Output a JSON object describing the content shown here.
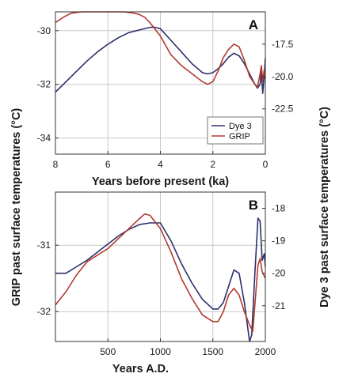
{
  "figure": {
    "left_axis_label": "GRIP past surface temperatures (°C)",
    "right_axis_label": "Dye 3 past surface temperatures (°C)"
  },
  "colors": {
    "dye3": "#2b2f6b",
    "grip": "#b23a2e",
    "grid": "#c8c8c8",
    "frame": "#333333"
  },
  "chart_data": [
    {
      "type": "line",
      "panel_label": "A",
      "xlabel": "Years before present (ka)",
      "xlim": [
        8,
        0
      ],
      "x_ticks": [
        8,
        6,
        4,
        2,
        0
      ],
      "ylim_left": [
        -34.6,
        -29.3
      ],
      "y_ticks_left": [
        -30,
        -32,
        -34
      ],
      "ylim_right": [
        -26.0,
        -15.0
      ],
      "y_ticks_right": [
        -17.5,
        -20.0,
        -22.5
      ],
      "grid": true,
      "legend": {
        "placement": "bottom-right",
        "entries": [
          "Dye 3",
          "GRIP"
        ]
      },
      "series": [
        {
          "name": "Dye 3",
          "axis": "right",
          "x": [
            8,
            7.6,
            7.2,
            6.8,
            6.4,
            6.0,
            5.6,
            5.2,
            4.8,
            4.4,
            4.2,
            4.0,
            3.6,
            3.2,
            2.8,
            2.4,
            2.2,
            2.0,
            1.8,
            1.6,
            1.4,
            1.2,
            1.0,
            0.8,
            0.6,
            0.4,
            0.3,
            0.2,
            0.15,
            0.1,
            0.05,
            0.0
          ],
          "y": [
            -21.2,
            -20.4,
            -19.6,
            -18.8,
            -18.1,
            -17.5,
            -17.0,
            -16.6,
            -16.4,
            -16.2,
            -16.2,
            -16.3,
            -17.2,
            -18.1,
            -19.0,
            -19.7,
            -19.8,
            -19.7,
            -19.4,
            -19.0,
            -18.5,
            -18.2,
            -18.4,
            -19.0,
            -19.8,
            -20.6,
            -20.9,
            -20.6,
            -19.6,
            -21.3,
            -20.2,
            -18.6
          ]
        },
        {
          "name": "GRIP",
          "axis": "left",
          "x": [
            8,
            7.7,
            7.4,
            7.0,
            6.6,
            6.2,
            5.8,
            5.4,
            5.0,
            4.8,
            4.6,
            4.4,
            4.0,
            3.6,
            3.2,
            2.8,
            2.4,
            2.2,
            2.0,
            1.8,
            1.6,
            1.4,
            1.2,
            1.0,
            0.8,
            0.6,
            0.4,
            0.3,
            0.2,
            0.15,
            0.1,
            0.05,
            0.0
          ],
          "y": [
            -29.7,
            -29.5,
            -29.35,
            -29.3,
            -29.3,
            -29.3,
            -29.3,
            -29.3,
            -29.35,
            -29.4,
            -29.5,
            -29.7,
            -30.2,
            -30.9,
            -31.3,
            -31.6,
            -31.9,
            -32.0,
            -31.9,
            -31.5,
            -31.0,
            -30.7,
            -30.5,
            -30.6,
            -31.1,
            -31.7,
            -32.0,
            -32.1,
            -31.6,
            -31.3,
            -31.9,
            -31.5,
            -31.8
          ]
        }
      ]
    },
    {
      "type": "line",
      "panel_label": "B",
      "xlabel": "Years A.D.",
      "xlim": [
        0,
        2000
      ],
      "x_ticks": [
        500,
        1000,
        1500,
        2000
      ],
      "ylim_left": [
        -32.45,
        -30.2
      ],
      "y_ticks_left": [
        -31,
        -32
      ],
      "ylim_right": [
        -22.1,
        -17.5
      ],
      "y_ticks_right": [
        -18,
        -19,
        -20,
        -21
      ],
      "grid": true,
      "series": [
        {
          "name": "Dye 3",
          "axis": "right",
          "x": [
            0,
            100,
            200,
            300,
            400,
            500,
            600,
            700,
            800,
            900,
            1000,
            1100,
            1200,
            1300,
            1400,
            1500,
            1550,
            1600,
            1700,
            1750,
            1800,
            1850,
            1870,
            1900,
            1930,
            1950,
            1970,
            1990,
            2000
          ],
          "y": [
            -20.0,
            -20.0,
            -19.8,
            -19.6,
            -19.35,
            -19.1,
            -18.85,
            -18.65,
            -18.5,
            -18.45,
            -18.45,
            -19.0,
            -19.7,
            -20.3,
            -20.8,
            -21.1,
            -21.1,
            -20.9,
            -19.9,
            -20.0,
            -20.9,
            -22.1,
            -21.9,
            -20.0,
            -18.3,
            -18.4,
            -19.6,
            -19.4,
            -19.8
          ]
        },
        {
          "name": "GRIP",
          "axis": "left",
          "x": [
            0,
            100,
            200,
            300,
            400,
            500,
            600,
            700,
            800,
            850,
            900,
            1000,
            1100,
            1200,
            1300,
            1400,
            1500,
            1550,
            1600,
            1650,
            1700,
            1750,
            1800,
            1850,
            1880,
            1900,
            1930,
            1950,
            1970,
            2000
          ],
          "y": [
            -31.9,
            -31.7,
            -31.45,
            -31.25,
            -31.15,
            -31.05,
            -30.9,
            -30.75,
            -30.6,
            -30.53,
            -30.55,
            -30.75,
            -31.1,
            -31.5,
            -31.8,
            -32.05,
            -32.15,
            -32.15,
            -32.0,
            -31.75,
            -31.65,
            -31.75,
            -32.0,
            -32.2,
            -32.3,
            -31.9,
            -31.3,
            -31.2,
            -31.4,
            -31.5
          ]
        }
      ]
    }
  ]
}
